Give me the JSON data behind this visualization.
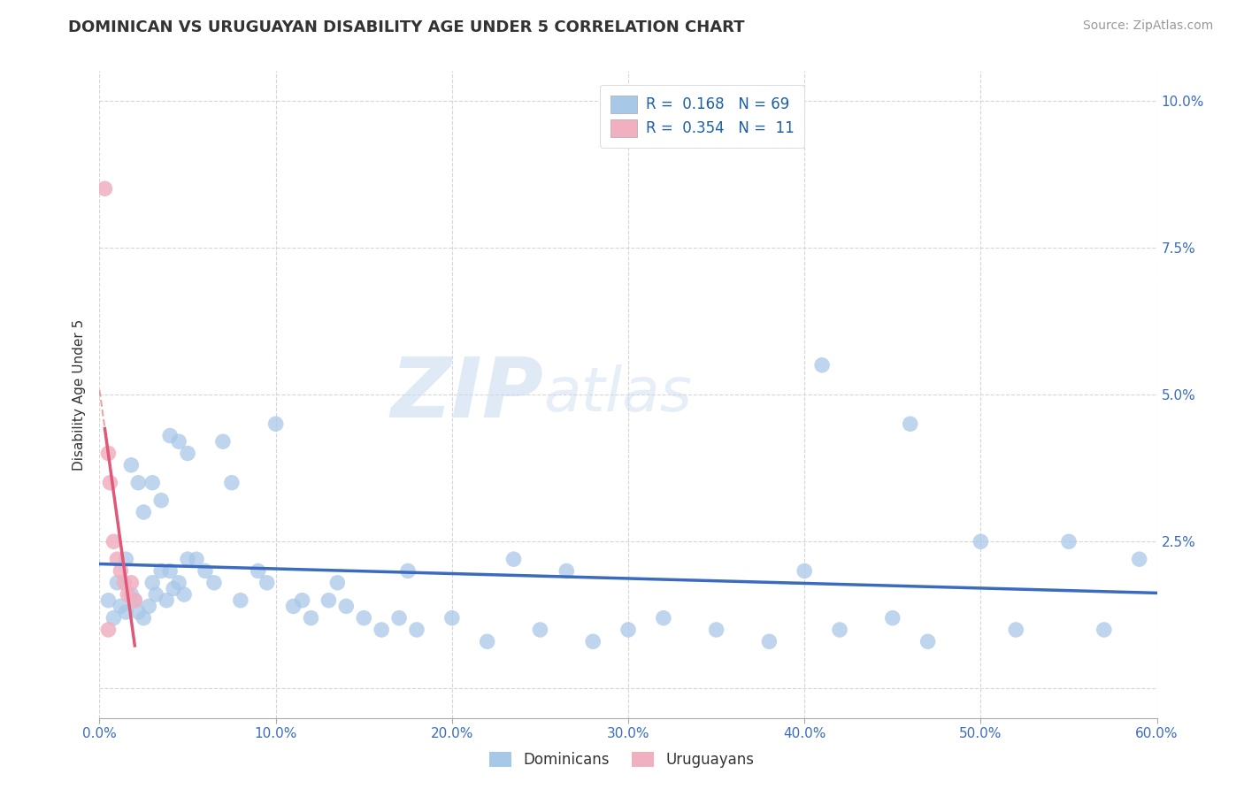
{
  "title": "DOMINICAN VS URUGUAYAN DISABILITY AGE UNDER 5 CORRELATION CHART",
  "source": "Source: ZipAtlas.com",
  "ylabel": "Disability Age Under 5",
  "xlim": [
    0.0,
    0.6
  ],
  "ylim": [
    -0.005,
    0.105
  ],
  "xtick_values": [
    0.0,
    0.1,
    0.2,
    0.3,
    0.4,
    0.5,
    0.6
  ],
  "xtick_labels": [
    "0.0%",
    "10.0%",
    "20.0%",
    "30.0%",
    "40.0%",
    "50.0%",
    "60.0%"
  ],
  "ytick_values": [
    0.0,
    0.025,
    0.05,
    0.075,
    0.1
  ],
  "ytick_labels": [
    "",
    "2.5%",
    "5.0%",
    "7.5%",
    "10.0%"
  ],
  "grid_color": "#cccccc",
  "background_color": "#ffffff",
  "blue_color": "#a8c8e8",
  "pink_color": "#f0b0c0",
  "blue_line_color": "#3a6bbf",
  "pink_line_color": "#e05878",
  "pink_dash_color": "#e09090",
  "watermark_zip": "ZIP",
  "watermark_atlas": "atlas",
  "R_blue": 0.168,
  "N_blue": 69,
  "R_pink": 0.354,
  "N_pink": 11,
  "dominicans_label": "Dominicans",
  "uruguayans_label": "Uruguayans",
  "label_color": "#1a5fa8",
  "title_color": "#333333",
  "axis_label_color": "#3a6bbf",
  "blue_scatter_x": [
    0.005,
    0.008,
    0.01,
    0.012,
    0.015,
    0.018,
    0.02,
    0.022,
    0.025,
    0.028,
    0.03,
    0.032,
    0.035,
    0.038,
    0.04,
    0.042,
    0.045,
    0.048,
    0.05,
    0.015,
    0.018,
    0.022,
    0.025,
    0.03,
    0.035,
    0.04,
    0.045,
    0.05,
    0.055,
    0.06,
    0.065,
    0.07,
    0.08,
    0.09,
    0.1,
    0.11,
    0.12,
    0.13,
    0.14,
    0.15,
    0.16,
    0.17,
    0.18,
    0.2,
    0.22,
    0.25,
    0.28,
    0.3,
    0.32,
    0.35,
    0.38,
    0.4,
    0.42,
    0.45,
    0.47,
    0.5,
    0.52,
    0.55,
    0.57,
    0.59,
    0.075,
    0.095,
    0.115,
    0.135,
    0.175,
    0.235,
    0.265,
    0.41,
    0.46
  ],
  "blue_scatter_y": [
    0.015,
    0.012,
    0.018,
    0.014,
    0.013,
    0.016,
    0.015,
    0.013,
    0.012,
    0.014,
    0.018,
    0.016,
    0.02,
    0.015,
    0.043,
    0.017,
    0.042,
    0.016,
    0.04,
    0.022,
    0.038,
    0.035,
    0.03,
    0.035,
    0.032,
    0.02,
    0.018,
    0.022,
    0.022,
    0.02,
    0.018,
    0.042,
    0.015,
    0.02,
    0.045,
    0.014,
    0.012,
    0.015,
    0.014,
    0.012,
    0.01,
    0.012,
    0.01,
    0.012,
    0.008,
    0.01,
    0.008,
    0.01,
    0.012,
    0.01,
    0.008,
    0.02,
    0.01,
    0.012,
    0.008,
    0.025,
    0.01,
    0.025,
    0.01,
    0.022,
    0.035,
    0.018,
    0.015,
    0.018,
    0.02,
    0.022,
    0.02,
    0.055,
    0.045
  ],
  "pink_scatter_x": [
    0.003,
    0.005,
    0.006,
    0.008,
    0.01,
    0.012,
    0.014,
    0.016,
    0.018,
    0.02,
    0.005
  ],
  "pink_scatter_y": [
    0.085,
    0.04,
    0.035,
    0.025,
    0.022,
    0.02,
    0.018,
    0.016,
    0.018,
    0.015,
    0.01
  ]
}
